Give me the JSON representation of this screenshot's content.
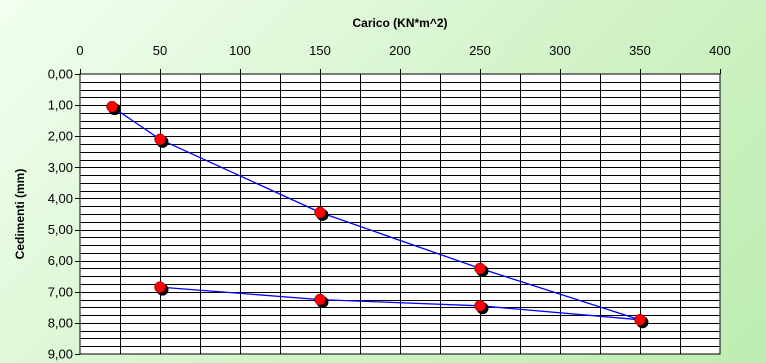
{
  "chart_data": {
    "type": "line",
    "xlabel": "Carico (KN*m^2)",
    "ylabel": "Cedimenti (mm)",
    "x_axis_position": "top",
    "y_axis_inverted": true,
    "xlim": [
      0,
      400
    ],
    "ylim": [
      0,
      9
    ],
    "x_ticks": [
      0,
      50,
      100,
      150,
      200,
      250,
      300,
      350,
      400
    ],
    "x_tick_labels": [
      "0",
      "50",
      "100",
      "150",
      "200",
      "250",
      "300",
      "350",
      "400"
    ],
    "y_ticks": [
      0,
      1,
      2,
      3,
      4,
      5,
      6,
      7,
      8,
      9
    ],
    "y_tick_labels": [
      "0,00",
      "1,00",
      "2,00",
      "3,00",
      "4,00",
      "5,00",
      "6,00",
      "7,00",
      "8,00",
      "9,00"
    ],
    "grid": true,
    "legend": false,
    "series": [
      {
        "line_color": "#0000ff",
        "marker_color": "#ff0000",
        "marker_shadow_color": "#000000",
        "x": [
          20,
          50,
          150,
          250,
          350,
          250,
          150,
          50
        ],
        "y": [
          1.05,
          2.1,
          4.45,
          6.25,
          7.9,
          7.45,
          7.25,
          6.85
        ]
      }
    ]
  }
}
